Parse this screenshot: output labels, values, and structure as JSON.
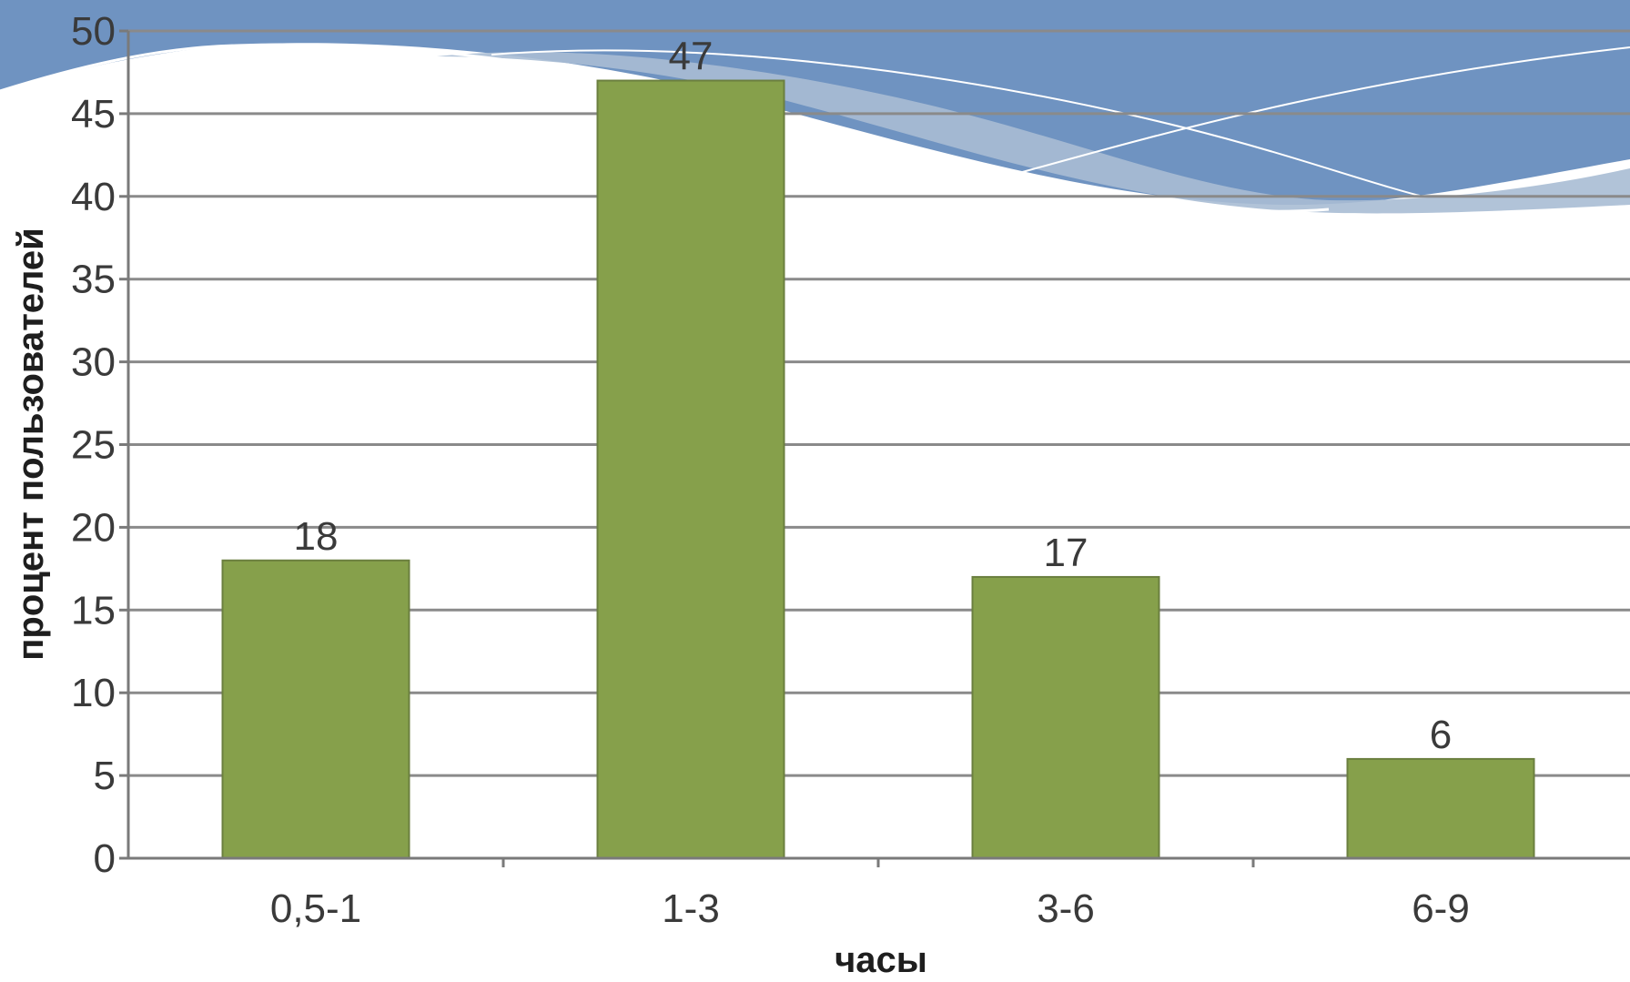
{
  "chart_data": {
    "type": "bar",
    "categories": [
      "0,5-1",
      "1-3",
      "3-6",
      "6-9"
    ],
    "values": [
      18,
      47,
      17,
      6
    ],
    "data_labels": [
      "18",
      "47",
      "17",
      "6"
    ],
    "xlabel": "часы",
    "ylabel": "процент пользователей",
    "ylim": [
      0,
      50
    ],
    "yticks": [
      0,
      5,
      10,
      15,
      20,
      25,
      30,
      35,
      40,
      45,
      50
    ],
    "ytick_labels": [
      "0",
      "5",
      "10",
      "15",
      "20",
      "25",
      "30",
      "35",
      "40",
      "45",
      "50"
    ],
    "grid": true,
    "legend": "none",
    "colors": {
      "bar": "#86a04b",
      "background_wave": "#6f93c1"
    }
  }
}
